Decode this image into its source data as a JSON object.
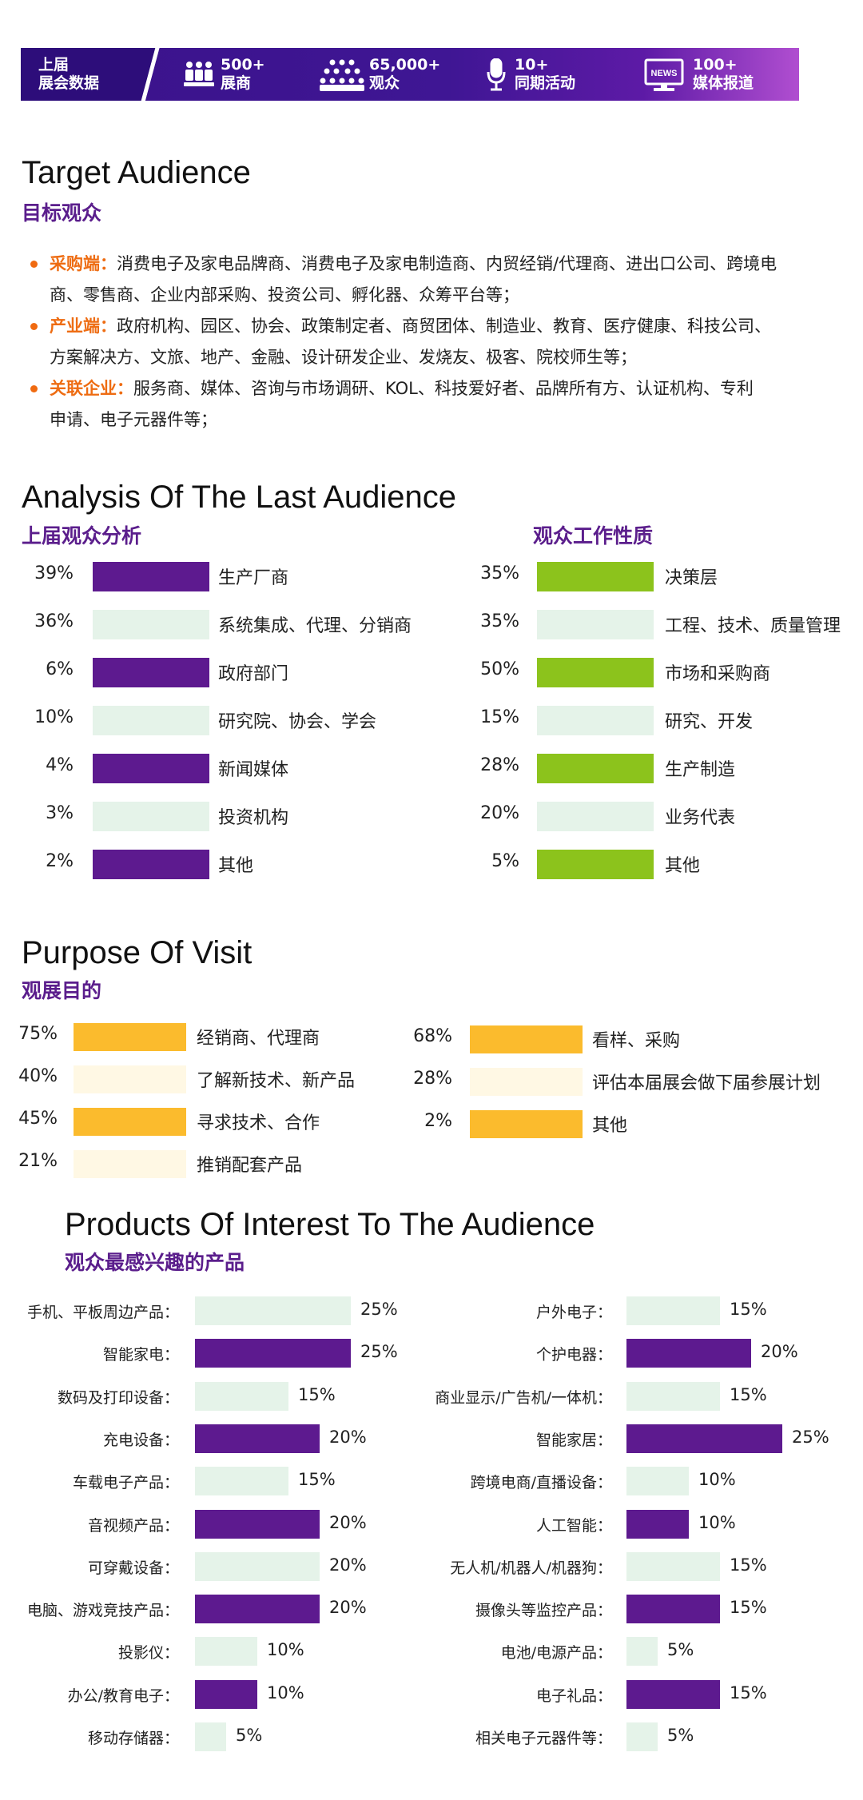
{
  "banner": {
    "lead": [
      "上届",
      "展会数据"
    ],
    "stats": [
      {
        "icon": "exhibitors-icon",
        "num": "500+",
        "label": "展商"
      },
      {
        "icon": "audience-icon",
        "num": "65,000+",
        "label": "观众"
      },
      {
        "icon": "microphone-icon",
        "num": "10+",
        "label": "同期活动"
      },
      {
        "icon": "news-icon",
        "num": "100+",
        "label": "媒体报道",
        "icon_text": "NEWS"
      }
    ]
  },
  "target": {
    "title_en": "Target Audience",
    "title_zh": "目标观众",
    "items": [
      {
        "key": "采购端：",
        "lines": [
          "消费电子及家电品牌商、消费电子及家电制造商、内贸经销/代理商、进出口公司、跨境电",
          "商、零售商、企业内部采购、投资公司、孵化器、众筹平台等；"
        ]
      },
      {
        "key": "产业端：",
        "lines": [
          "政府机构、园区、协会、政策制定者、商贸团体、制造业、教育、医疗健康、科技公司、",
          "方案解决方、文旅、地产、金融、设计研发企业、发烧友、极客、院校师生等；"
        ]
      },
      {
        "key": "关联企业：",
        "lines": [
          "服务商、媒体、咨询与市场调研、KOL、科技爱好者、品牌所有方、认证机构、专利",
          "申请、电子元器件等；"
        ]
      }
    ]
  },
  "analysis": {
    "title_en": "Analysis Of The Last Audience",
    "colors": {
      "purple": "#5d1a8f",
      "green": "#8cc31c",
      "amber": "#fbbb2d",
      "pale_green": "#e5f3e9",
      "pale_amber": "#fff8e4"
    }
  },
  "chart_data": [
    {
      "type": "bar",
      "title": "上届观众分析",
      "categories": [
        "生产厂商",
        "系统集成、代理、分销商",
        "政府部门",
        "研究院、协会、学会",
        "新闻媒体",
        "投资机构",
        "其他"
      ],
      "values": [
        39,
        36,
        6,
        10,
        4,
        3,
        2
      ],
      "value_labels": [
        "39%",
        "36%",
        "6%",
        "10%",
        "4%",
        "3%",
        "2%"
      ]
    },
    {
      "type": "bar",
      "title": "观众工作性质",
      "categories": [
        "决策层",
        "工程、技术、质量管理",
        "市场和采购商",
        "研究、开发",
        "生产制造",
        "业务代表",
        "其他"
      ],
      "values": [
        35,
        35,
        50,
        15,
        28,
        20,
        5
      ],
      "value_labels": [
        "35%",
        "35%",
        "50%",
        "15%",
        "28%",
        "20%",
        "5%"
      ]
    },
    {
      "type": "bar",
      "title": "观展目的",
      "title_en": "Purpose Of Visit",
      "categories": [
        "经销商、代理商",
        "了解新技术、新产品",
        "寻求技术、合作",
        "推销配套产品",
        "看样、采购",
        "评估本届展会做下届参展计划",
        "其他"
      ],
      "values": [
        75,
        40,
        45,
        21,
        68,
        28,
        2
      ],
      "value_labels": [
        "75%",
        "40%",
        "45%",
        "21%",
        "68%",
        "28%",
        "2%"
      ]
    },
    {
      "type": "bar",
      "title": "观众最感兴趣的产品",
      "title_en": "Products Of Interest To The Audience",
      "categories": [
        "手机、平板周边产品：",
        "智能家电：",
        "数码及打印设备：",
        "充电设备：",
        "车载电子产品：",
        "音视频产品：",
        "可穿戴设备：",
        "电脑、游戏竞技产品：",
        "投影仪：",
        "办公/教育电子：",
        "移动存储器：",
        "户外电子：",
        "个护电器：",
        "商业显示/广告机/一体机：",
        "智能家居：",
        "跨境电商/直播设备：",
        "人工智能：",
        "无人机/机器人/机器狗：",
        "摄像头等监控产品：",
        "电池/电源产品：",
        "电子礼品：",
        "相关电子元器件等："
      ],
      "values": [
        25,
        25,
        15,
        20,
        15,
        20,
        20,
        20,
        10,
        10,
        5,
        15,
        20,
        15,
        25,
        10,
        10,
        15,
        15,
        5,
        15,
        5
      ],
      "value_labels": [
        "25%",
        "25%",
        "15%",
        "20%",
        "15%",
        "20%",
        "20%",
        "20%",
        "10%",
        "10%",
        "5%",
        "15%",
        "20%",
        "15%",
        "25%",
        "10%",
        "10%",
        "15%",
        "15%",
        "5%",
        "15%",
        "5%"
      ]
    }
  ]
}
